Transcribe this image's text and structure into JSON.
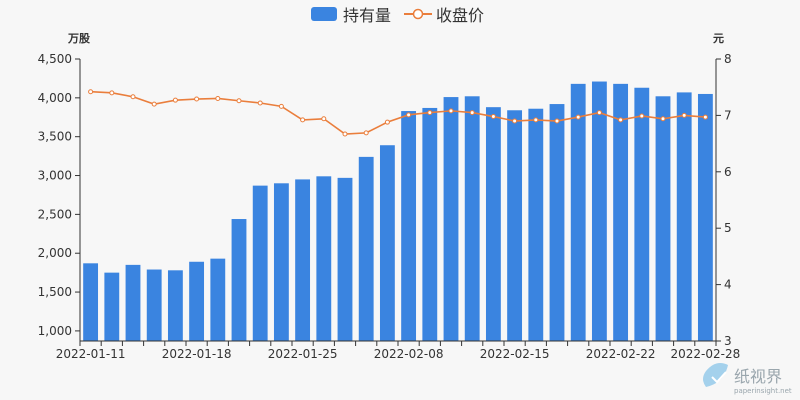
{
  "chart_data": {
    "type": "bar",
    "categories": [
      "2022-01-11",
      "2022-01-12",
      "2022-01-13",
      "2022-01-14",
      "2022-01-17",
      "2022-01-18",
      "2022-01-19",
      "2022-01-20",
      "2022-01-21",
      "2022-01-24",
      "2022-01-25",
      "2022-01-26",
      "2022-01-27",
      "2022-01-28",
      "2022-02-07",
      "2022-02-08",
      "2022-02-09",
      "2022-02-10",
      "2022-02-11",
      "2022-02-14",
      "2022-02-15",
      "2022-02-16",
      "2022-02-17",
      "2022-02-18",
      "2022-02-21",
      "2022-02-22",
      "2022-02-23",
      "2022-02-24",
      "2022-02-25",
      "2022-02-28"
    ],
    "tick_labels": [
      "2022-01-11",
      "2022-01-18",
      "2022-01-25",
      "2022-02-08",
      "2022-02-15",
      "2022-02-22",
      "2022-02-28"
    ],
    "series": [
      {
        "name": "持有量",
        "type": "bar",
        "axis": "left",
        "color": "#3a84e0",
        "values": [
          1870,
          1750,
          1850,
          1790,
          1780,
          1890,
          1930,
          2440,
          2870,
          2900,
          2950,
          2990,
          2970,
          3240,
          3390,
          3830,
          3870,
          4010,
          4020,
          3880,
          3840,
          3860,
          3920,
          4180,
          4210,
          4180,
          4130,
          4020,
          4070,
          4050
        ]
      },
      {
        "name": "收盘价",
        "type": "line",
        "axis": "right",
        "color": "#ea7e3c",
        "values": [
          7.42,
          7.4,
          7.33,
          7.2,
          7.27,
          7.29,
          7.3,
          7.26,
          7.22,
          7.16,
          6.92,
          6.94,
          6.67,
          6.69,
          6.88,
          7.01,
          7.05,
          7.08,
          7.05,
          6.98,
          6.9,
          6.92,
          6.9,
          6.97,
          7.05,
          6.92,
          6.99,
          6.94,
          7.0,
          6.97
        ]
      }
    ],
    "left_axis": {
      "unit": "万股",
      "min": 870,
      "max": 4500,
      "ticks": [
        1000,
        1500,
        2000,
        2500,
        3000,
        3500,
        4000,
        4500
      ],
      "tick_labels": [
        "1,000",
        "1,500",
        "2,000",
        "2,500",
        "3,000",
        "3,500",
        "4,000",
        "4,500"
      ]
    },
    "right_axis": {
      "unit": "元",
      "min": 3,
      "max": 8,
      "ticks": [
        3,
        4,
        5,
        6,
        7,
        8
      ]
    },
    "legend": {
      "position": "top-center",
      "items": [
        "持有量",
        "收盘价"
      ]
    },
    "grid": false
  },
  "watermark": {
    "text": "纸视界",
    "subtext": "paperinsight.net"
  }
}
